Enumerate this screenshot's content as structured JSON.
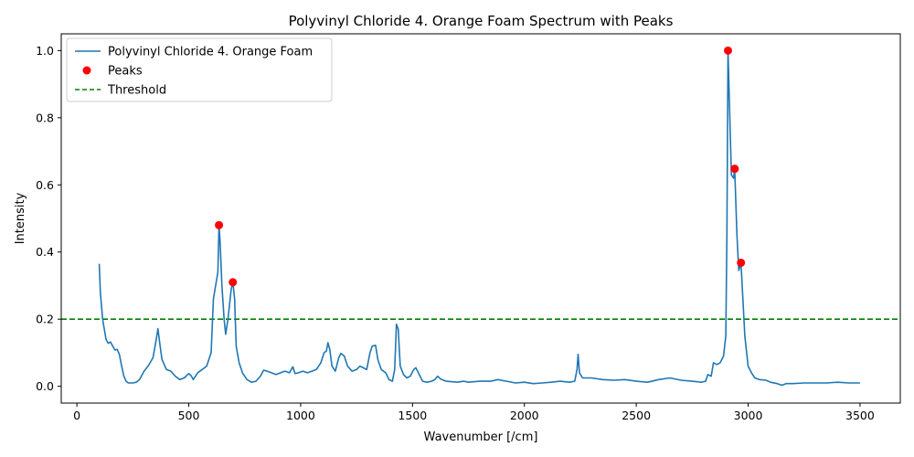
{
  "chart_data": {
    "type": "line",
    "title": "Polyvinyl Chloride 4. Orange Foam Spectrum with Peaks",
    "xlabel": "Wavenumber [/cm]",
    "ylabel": "Intensity",
    "xlim": [
      -70,
      3680
    ],
    "ylim": [
      -0.05,
      1.05
    ],
    "xticks": [
      0,
      500,
      1000,
      1500,
      2000,
      2500,
      3000,
      3500
    ],
    "yticks": [
      0.0,
      0.2,
      0.4,
      0.6,
      0.8,
      1.0
    ],
    "grid": false,
    "legend_position": "top-left",
    "series": [
      {
        "name": "Polyvinyl Chloride 4. Orange Foam",
        "color": "#1f77b4",
        "points": [
          [
            100,
            0.365
          ],
          [
            105,
            0.28
          ],
          [
            115,
            0.2
          ],
          [
            130,
            0.14
          ],
          [
            140,
            0.128
          ],
          [
            150,
            0.132
          ],
          [
            160,
            0.12
          ],
          [
            170,
            0.108
          ],
          [
            180,
            0.11
          ],
          [
            190,
            0.095
          ],
          [
            200,
            0.06
          ],
          [
            210,
            0.03
          ],
          [
            220,
            0.015
          ],
          [
            230,
            0.01
          ],
          [
            250,
            0.01
          ],
          [
            265,
            0.012
          ],
          [
            280,
            0.02
          ],
          [
            300,
            0.045
          ],
          [
            320,
            0.062
          ],
          [
            340,
            0.085
          ],
          [
            355,
            0.14
          ],
          [
            362,
            0.172
          ],
          [
            370,
            0.13
          ],
          [
            380,
            0.08
          ],
          [
            400,
            0.05
          ],
          [
            420,
            0.045
          ],
          [
            440,
            0.03
          ],
          [
            460,
            0.02
          ],
          [
            480,
            0.025
          ],
          [
            500,
            0.038
          ],
          [
            510,
            0.032
          ],
          [
            520,
            0.02
          ],
          [
            540,
            0.04
          ],
          [
            560,
            0.05
          ],
          [
            580,
            0.06
          ],
          [
            600,
            0.1
          ],
          [
            610,
            0.26
          ],
          [
            620,
            0.3
          ],
          [
            630,
            0.34
          ],
          [
            635,
            0.48
          ],
          [
            640,
            0.43
          ],
          [
            648,
            0.3
          ],
          [
            658,
            0.2
          ],
          [
            665,
            0.155
          ],
          [
            675,
            0.2
          ],
          [
            690,
            0.29
          ],
          [
            697,
            0.31
          ],
          [
            705,
            0.26
          ],
          [
            712,
            0.12
          ],
          [
            725,
            0.07
          ],
          [
            740,
            0.04
          ],
          [
            760,
            0.02
          ],
          [
            780,
            0.012
          ],
          [
            800,
            0.015
          ],
          [
            820,
            0.03
          ],
          [
            835,
            0.048
          ],
          [
            850,
            0.045
          ],
          [
            870,
            0.04
          ],
          [
            890,
            0.035
          ],
          [
            910,
            0.04
          ],
          [
            930,
            0.045
          ],
          [
            950,
            0.04
          ],
          [
            965,
            0.058
          ],
          [
            975,
            0.038
          ],
          [
            990,
            0.04
          ],
          [
            1010,
            0.045
          ],
          [
            1030,
            0.04
          ],
          [
            1050,
            0.045
          ],
          [
            1070,
            0.05
          ],
          [
            1090,
            0.07
          ],
          [
            1105,
            0.1
          ],
          [
            1115,
            0.105
          ],
          [
            1122,
            0.13
          ],
          [
            1130,
            0.11
          ],
          [
            1140,
            0.06
          ],
          [
            1155,
            0.045
          ],
          [
            1170,
            0.085
          ],
          [
            1180,
            0.098
          ],
          [
            1195,
            0.09
          ],
          [
            1210,
            0.06
          ],
          [
            1230,
            0.045
          ],
          [
            1250,
            0.05
          ],
          [
            1265,
            0.06
          ],
          [
            1280,
            0.055
          ],
          [
            1295,
            0.05
          ],
          [
            1310,
            0.1
          ],
          [
            1320,
            0.12
          ],
          [
            1335,
            0.122
          ],
          [
            1345,
            0.08
          ],
          [
            1360,
            0.05
          ],
          [
            1380,
            0.04
          ],
          [
            1395,
            0.02
          ],
          [
            1410,
            0.015
          ],
          [
            1420,
            0.05
          ],
          [
            1428,
            0.185
          ],
          [
            1436,
            0.17
          ],
          [
            1445,
            0.06
          ],
          [
            1460,
            0.035
          ],
          [
            1475,
            0.025
          ],
          [
            1490,
            0.03
          ],
          [
            1505,
            0.05
          ],
          [
            1515,
            0.055
          ],
          [
            1530,
            0.035
          ],
          [
            1545,
            0.015
          ],
          [
            1565,
            0.012
          ],
          [
            1585,
            0.015
          ],
          [
            1600,
            0.02
          ],
          [
            1612,
            0.03
          ],
          [
            1625,
            0.022
          ],
          [
            1650,
            0.015
          ],
          [
            1700,
            0.012
          ],
          [
            1730,
            0.015
          ],
          [
            1750,
            0.012
          ],
          [
            1800,
            0.015
          ],
          [
            1850,
            0.015
          ],
          [
            1880,
            0.02
          ],
          [
            1920,
            0.015
          ],
          [
            1960,
            0.01
          ],
          [
            2000,
            0.012
          ],
          [
            2040,
            0.008
          ],
          [
            2080,
            0.01
          ],
          [
            2120,
            0.012
          ],
          [
            2160,
            0.015
          ],
          [
            2200,
            0.012
          ],
          [
            2225,
            0.015
          ],
          [
            2235,
            0.05
          ],
          [
            2240,
            0.095
          ],
          [
            2246,
            0.04
          ],
          [
            2260,
            0.025
          ],
          [
            2300,
            0.025
          ],
          [
            2350,
            0.02
          ],
          [
            2400,
            0.018
          ],
          [
            2450,
            0.02
          ],
          [
            2500,
            0.015
          ],
          [
            2550,
            0.012
          ],
          [
            2600,
            0.02
          ],
          [
            2650,
            0.025
          ],
          [
            2700,
            0.018
          ],
          [
            2750,
            0.015
          ],
          [
            2790,
            0.012
          ],
          [
            2810,
            0.015
          ],
          [
            2820,
            0.035
          ],
          [
            2835,
            0.03
          ],
          [
            2845,
            0.07
          ],
          [
            2860,
            0.065
          ],
          [
            2875,
            0.07
          ],
          [
            2890,
            0.09
          ],
          [
            2900,
            0.15
          ],
          [
            2905,
            0.45
          ],
          [
            2910,
            1.0
          ],
          [
            2916,
            0.85
          ],
          [
            2925,
            0.63
          ],
          [
            2935,
            0.62
          ],
          [
            2940,
            0.648
          ],
          [
            2950,
            0.45
          ],
          [
            2958,
            0.345
          ],
          [
            2968,
            0.368
          ],
          [
            2975,
            0.28
          ],
          [
            2985,
            0.15
          ],
          [
            3000,
            0.06
          ],
          [
            3015,
            0.04
          ],
          [
            3030,
            0.025
          ],
          [
            3050,
            0.02
          ],
          [
            3080,
            0.018
          ],
          [
            3100,
            0.012
          ],
          [
            3130,
            0.008
          ],
          [
            3150,
            0.003
          ],
          [
            3170,
            0.008
          ],
          [
            3200,
            0.008
          ],
          [
            3250,
            0.01
          ],
          [
            3300,
            0.01
          ],
          [
            3350,
            0.01
          ],
          [
            3400,
            0.012
          ],
          [
            3450,
            0.01
          ],
          [
            3500,
            0.01
          ]
        ]
      },
      {
        "name": "Peaks",
        "color": "#ff0000",
        "points": [
          [
            635,
            0.48
          ],
          [
            697,
            0.31
          ],
          [
            2910,
            1.0
          ],
          [
            2940,
            0.648
          ],
          [
            2968,
            0.368
          ]
        ]
      },
      {
        "name": "Threshold",
        "color": "#008000",
        "y": 0.2
      }
    ]
  }
}
